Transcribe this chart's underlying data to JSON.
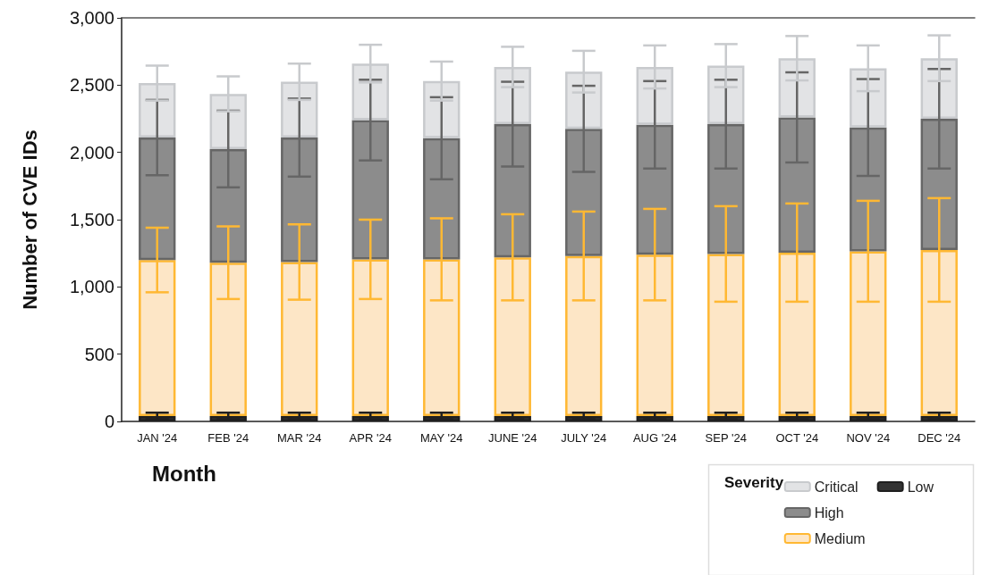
{
  "chart_data": {
    "type": "bar",
    "stacked": true,
    "xlabel": "Month",
    "ylabel": "Number of CVE IDs",
    "legend_title": "Severity",
    "legend": "bottom right",
    "grid": false,
    "categories": [
      "JAN '24",
      "FEB '24",
      "MAR '24",
      "APR '24",
      "MAY '24",
      "JUNE '24",
      "JULY '24",
      "AUG '24",
      "SEP '24",
      "OCT '24",
      "NOV '24",
      "DEC '24"
    ],
    "ylim": [
      0,
      3000
    ],
    "yticks": [
      0,
      500,
      {
        "value": 1000,
        "label": "1,000"
      },
      {
        "value": 1500,
        "label": "1,500"
      },
      {
        "value": 2000,
        "label": "2,000"
      },
      {
        "value": 2500,
        "label": "2,500"
      },
      {
        "value": 3000,
        "label": "3,000"
      }
    ],
    "series": [
      {
        "name": "Low",
        "color": "#333333",
        "values": [
          40,
          40,
          40,
          40,
          40,
          40,
          40,
          40,
          40,
          40,
          40,
          40
        ],
        "errors": [
          25,
          25,
          25,
          25,
          25,
          25,
          25,
          25,
          25,
          25,
          25,
          25
        ]
      },
      {
        "name": "Medium",
        "color": "#fde6c6",
        "values": [
          1160,
          1140,
          1145,
          1165,
          1165,
          1180,
          1190,
          1200,
          1205,
          1215,
          1225,
          1235
        ],
        "errors": [
          240,
          270,
          280,
          295,
          305,
          320,
          330,
          340,
          355,
          365,
          375,
          385
        ]
      },
      {
        "name": "High",
        "color": "#8c8c8c",
        "values": [
          910,
          845,
          925,
          1035,
          900,
          990,
          945,
          965,
          965,
          1005,
          920,
          975
        ],
        "errors": [
          280,
          285,
          290,
          300,
          305,
          315,
          320,
          325,
          330,
          335,
          360,
          370
        ]
      },
      {
        "name": "Critical",
        "color": "#e2e3e5",
        "values": [
          405,
          410,
          415,
          420,
          425,
          425,
          425,
          430,
          435,
          440,
          440,
          450
        ],
        "errors": [
          130,
          130,
          135,
          140,
          145,
          150,
          155,
          160,
          160,
          165,
          170,
          170
        ]
      }
    ]
  }
}
